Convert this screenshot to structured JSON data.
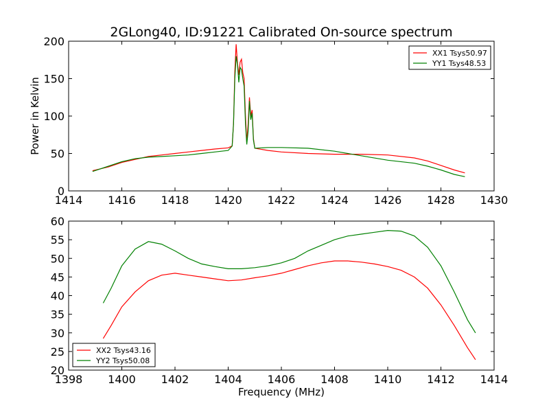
{
  "chart_data": [
    {
      "type": "line",
      "title": "2GLong40, ID:91221 Calibrated On-source spectrum",
      "xlabel": "",
      "ylabel": "Power in Kelvin",
      "xlim": [
        1414,
        1430
      ],
      "ylim": [
        0,
        200
      ],
      "xticks": [
        "1414",
        "1416",
        "1418",
        "1420",
        "1422",
        "1424",
        "1426",
        "1428",
        "1430"
      ],
      "yticks": [
        "0",
        "50",
        "100",
        "150",
        "200"
      ],
      "legend_position": "top-right",
      "series": [
        {
          "name": "XX1 Tsys50.97",
          "color": "#ff0000",
          "points": [
            [
              1414.9,
              27
            ],
            [
              1415.5,
              32
            ],
            [
              1416,
              38
            ],
            [
              1416.5,
              42
            ],
            [
              1417,
              46
            ],
            [
              1417.5,
              48
            ],
            [
              1418,
              50
            ],
            [
              1418.5,
              52
            ],
            [
              1419,
              54
            ],
            [
              1419.5,
              56
            ],
            [
              1420,
              57.5
            ],
            [
              1420.15,
              60
            ],
            [
              1420.2,
              90
            ],
            [
              1420.25,
              160
            ],
            [
              1420.3,
              196
            ],
            [
              1420.35,
              170
            ],
            [
              1420.4,
              155
            ],
            [
              1420.45,
              172
            ],
            [
              1420.5,
              176
            ],
            [
              1420.55,
              158
            ],
            [
              1420.6,
              150
            ],
            [
              1420.65,
              100
            ],
            [
              1420.7,
              65
            ],
            [
              1420.75,
              90
            ],
            [
              1420.8,
              125
            ],
            [
              1420.85,
              100
            ],
            [
              1420.9,
              108
            ],
            [
              1420.95,
              70
            ],
            [
              1421,
              57
            ],
            [
              1421.5,
              54
            ],
            [
              1422,
              52
            ],
            [
              1423,
              50
            ],
            [
              1424,
              49
            ],
            [
              1425,
              49
            ],
            [
              1426,
              48
            ],
            [
              1427,
              44
            ],
            [
              1427.5,
              40
            ],
            [
              1428,
              34
            ],
            [
              1428.5,
              28
            ],
            [
              1428.9,
              24
            ]
          ]
        },
        {
          "name": "YY1 Tsys48.53",
          "color": "#008000",
          "points": [
            [
              1414.9,
              26
            ],
            [
              1415.5,
              33
            ],
            [
              1416,
              39
            ],
            [
              1416.5,
              43
            ],
            [
              1417,
              45
            ],
            [
              1417.5,
              46
            ],
            [
              1418,
              47
            ],
            [
              1418.5,
              48
            ],
            [
              1419,
              50
            ],
            [
              1419.5,
              52
            ],
            [
              1420,
              54
            ],
            [
              1420.15,
              60
            ],
            [
              1420.2,
              90
            ],
            [
              1420.25,
              150
            ],
            [
              1420.3,
              180
            ],
            [
              1420.35,
              168
            ],
            [
              1420.4,
              145
            ],
            [
              1420.45,
              165
            ],
            [
              1420.5,
              162
            ],
            [
              1420.55,
              150
            ],
            [
              1420.6,
              140
            ],
            [
              1420.65,
              90
            ],
            [
              1420.7,
              62
            ],
            [
              1420.75,
              80
            ],
            [
              1420.8,
              120
            ],
            [
              1420.85,
              95
            ],
            [
              1420.9,
              104
            ],
            [
              1420.95,
              68
            ],
            [
              1421,
              57
            ],
            [
              1421.5,
              58
            ],
            [
              1422,
              58
            ],
            [
              1423,
              57
            ],
            [
              1424,
              53
            ],
            [
              1425,
              47
            ],
            [
              1426,
              41
            ],
            [
              1427,
              37
            ],
            [
              1427.5,
              33
            ],
            [
              1428,
              28
            ],
            [
              1428.5,
              22
            ],
            [
              1428.9,
              19
            ]
          ]
        }
      ]
    },
    {
      "type": "line",
      "title": "",
      "xlabel": "Frequency (MHz)",
      "ylabel": "",
      "xlim": [
        1398,
        1414
      ],
      "ylim": [
        20,
        60
      ],
      "xticks": [
        "1398",
        "1400",
        "1402",
        "1404",
        "1406",
        "1408",
        "1410",
        "1412",
        "1414"
      ],
      "yticks": [
        "20",
        "25",
        "30",
        "35",
        "40",
        "45",
        "50",
        "55",
        "60"
      ],
      "legend_position": "lower-left",
      "series": [
        {
          "name": "XX2 Tsys43.16",
          "color": "#ff0000",
          "points": [
            [
              1399.3,
              28.5
            ],
            [
              1399.6,
              32
            ],
            [
              1400,
              37
            ],
            [
              1400.5,
              41
            ],
            [
              1401,
              44
            ],
            [
              1401.5,
              45.5
            ],
            [
              1402,
              46
            ],
            [
              1402.5,
              45.5
            ],
            [
              1403,
              45
            ],
            [
              1403.5,
              44.5
            ],
            [
              1404,
              44
            ],
            [
              1404.5,
              44.2
            ],
            [
              1405,
              44.8
            ],
            [
              1405.5,
              45.3
            ],
            [
              1406,
              46
            ],
            [
              1406.5,
              47
            ],
            [
              1407,
              48
            ],
            [
              1407.5,
              48.8
            ],
            [
              1408,
              49.3
            ],
            [
              1408.5,
              49.3
            ],
            [
              1409,
              49
            ],
            [
              1409.5,
              48.5
            ],
            [
              1410,
              47.8
            ],
            [
              1410.5,
              46.8
            ],
            [
              1411,
              45
            ],
            [
              1411.5,
              42
            ],
            [
              1412,
              37.5
            ],
            [
              1412.5,
              32
            ],
            [
              1413,
              26
            ],
            [
              1413.3,
              22.8
            ]
          ]
        },
        {
          "name": "YY2 Tsys50.08",
          "color": "#008000",
          "points": [
            [
              1399.3,
              38
            ],
            [
              1399.6,
              42
            ],
            [
              1400,
              48
            ],
            [
              1400.5,
              52.5
            ],
            [
              1401,
              54.5
            ],
            [
              1401.5,
              53.8
            ],
            [
              1402,
              52
            ],
            [
              1402.5,
              50
            ],
            [
              1403,
              48.5
            ],
            [
              1403.5,
              47.8
            ],
            [
              1404,
              47.2
            ],
            [
              1404.5,
              47.2
            ],
            [
              1405,
              47.5
            ],
            [
              1405.5,
              48
            ],
            [
              1406,
              48.8
            ],
            [
              1406.5,
              50
            ],
            [
              1407,
              52
            ],
            [
              1407.5,
              53.5
            ],
            [
              1408,
              55
            ],
            [
              1408.5,
              56
            ],
            [
              1409,
              56.5
            ],
            [
              1409.5,
              57
            ],
            [
              1410,
              57.5
            ],
            [
              1410.5,
              57.3
            ],
            [
              1411,
              56
            ],
            [
              1411.5,
              53
            ],
            [
              1412,
              48
            ],
            [
              1412.5,
              41
            ],
            [
              1413,
              33.5
            ],
            [
              1413.3,
              30
            ]
          ]
        }
      ]
    }
  ]
}
